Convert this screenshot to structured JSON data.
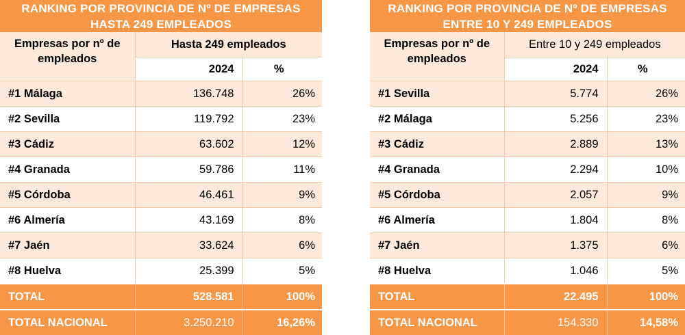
{
  "left": {
    "title_line1": "RANKING POR PROVINCIA DE Nº DE EMPRESAS",
    "title_line2": "HASTA 249 EMPLEADOS",
    "col_label": "Empresas por nº de empleados",
    "group_label": "Hasta 249 empleados",
    "year_label": "2024",
    "pct_label": "%",
    "rows": [
      {
        "name": "#1 Málaga",
        "value": "136.748",
        "pct": "26%"
      },
      {
        "name": "#2 Sevilla",
        "value": "119.792",
        "pct": "23%"
      },
      {
        "name": "#3 Cádiz",
        "value": "63.602",
        "pct": "12%"
      },
      {
        "name": "#4 Granada",
        "value": "59.786",
        "pct": "11%"
      },
      {
        "name": "#5 Córdoba",
        "value": "46.461",
        "pct": "9%"
      },
      {
        "name": "#6 Almería",
        "value": "43.169",
        "pct": "8%"
      },
      {
        "name": "#7 Jaén",
        "value": "33.624",
        "pct": "6%"
      },
      {
        "name": "#8 Huelva",
        "value": "25.399",
        "pct": "5%"
      }
    ],
    "total": {
      "name": "TOTAL",
      "value": "528.581",
      "pct": "100%"
    },
    "nacional": {
      "name": "TOTAL NACIONAL",
      "value": "3.250.210",
      "pct": "16,26%"
    }
  },
  "right": {
    "title_line1": "RANKING POR PROVINCIA DE Nº DE EMPRESAS",
    "title_line2": "ENTRE 10 Y 249 EMPLEADOS",
    "col_label": "Empresas por nº de empleados",
    "group_label": "Entre 10 y 249 empleados",
    "year_label": "2024",
    "pct_label": "%",
    "rows": [
      {
        "name": "#1 Sevilla",
        "value": "5.774",
        "pct": "26%"
      },
      {
        "name": "#2 Málaga",
        "value": "5.256",
        "pct": "23%"
      },
      {
        "name": "#3 Cádiz",
        "value": "2.889",
        "pct": "13%"
      },
      {
        "name": "#4 Granada",
        "value": "2.294",
        "pct": "10%"
      },
      {
        "name": "#5 Córdoba",
        "value": "2.057",
        "pct": "9%"
      },
      {
        "name": "#6 Almería",
        "value": "1.804",
        "pct": "8%"
      },
      {
        "name": "#7 Jaén",
        "value": "1.375",
        "pct": "6%"
      },
      {
        "name": "#8 Huelva",
        "value": "1.046",
        "pct": "5%"
      }
    ],
    "total": {
      "name": "TOTAL",
      "value": "22.495",
      "pct": "100%"
    },
    "nacional": {
      "name": "TOTAL NACIONAL",
      "value": "154.330",
      "pct": "14,58%"
    }
  },
  "colors": {
    "accent": "#f79646",
    "band": "#fde9d9",
    "white": "#ffffff"
  }
}
